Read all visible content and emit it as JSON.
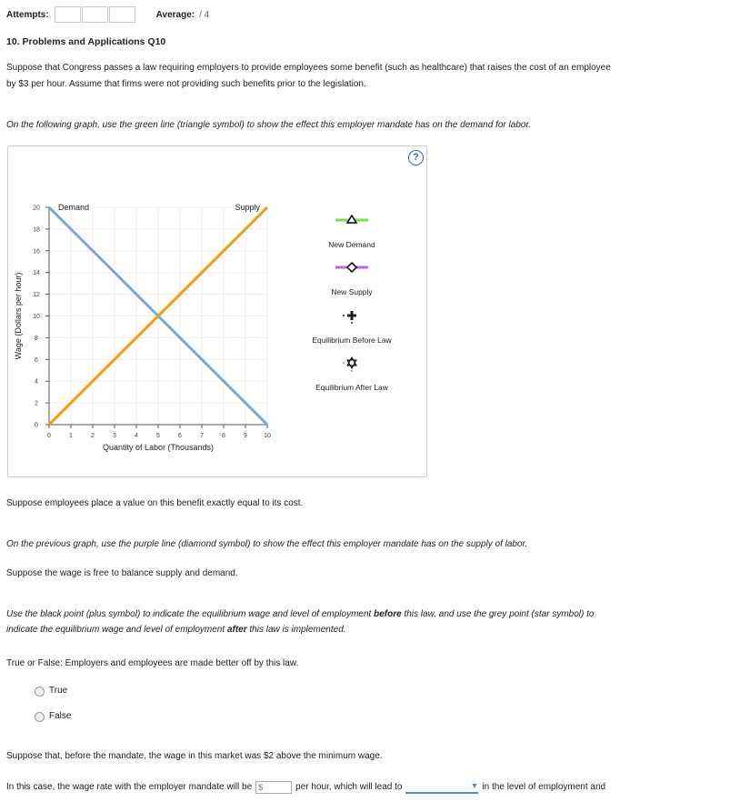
{
  "header": {
    "attempts_label": "Attempts:",
    "average_label": "Average:",
    "average_value": "/ 4"
  },
  "question": {
    "title": "10. Problems and Applications Q10",
    "intro_1": "Suppose that Congress passes a law requiring employers to provide employees some benefit (such as healthcare) that raises the cost of an employee",
    "intro_2": "by $3 per hour. Assume that firms were not providing such benefits prior to the legislation.",
    "instr_demand": "On the following graph, use the green line (triangle symbol) to show the effect this employer mandate has on the demand for labor.",
    "value_benefit": "Suppose employees place a value on this benefit exactly equal to its cost.",
    "instr_supply": "On the previous graph, use the purple line (diamond symbol) to show the effect this employer mandate has on the supply of labor.",
    "wage_free": "Suppose the wage is free to balance supply and demand.",
    "instr_points_1a": "Use the black point (plus symbol) to indicate the equilibrium wage and level of employment ",
    "instr_points_1b": "before",
    "instr_points_1c": " this law, and use the grey point (star symbol) to",
    "instr_points_2a": "indicate the equilibrium wage and level of employment ",
    "instr_points_2b": "after",
    "instr_points_2c": " this law is implemented.",
    "tf_question": "True or False: Employers and employees are made better off by this law.",
    "options": [
      "True",
      "False"
    ],
    "min_wage": "Suppose that, before the mandate, the wage in this market was $2 above the minimum wage.",
    "final_a": "In this case, the wage rate with the employer mandate will be",
    "final_placeholder": "$",
    "final_b": "per hour, which will lead to",
    "final_c": "in the level of employment and"
  },
  "graph": {
    "help": "?"
  },
  "chart_data": {
    "type": "line",
    "xlabel": "Quantity of Labor (Thousands)",
    "ylabel": "Wage (Dollars per hour)",
    "xlim": [
      0,
      10
    ],
    "ylim": [
      0,
      20
    ],
    "xticks": [
      0,
      1,
      2,
      3,
      4,
      5,
      6,
      7,
      8,
      9,
      10
    ],
    "yticks": [
      0,
      2,
      4,
      6,
      8,
      10,
      12,
      14,
      16,
      18,
      20
    ],
    "grid": true,
    "series": [
      {
        "name": "Demand",
        "x": [
          0,
          10
        ],
        "y": [
          20,
          0
        ],
        "color": "#7fa8d1"
      },
      {
        "name": "Supply",
        "x": [
          0,
          10
        ],
        "y": [
          0,
          20
        ],
        "color": "#f39a14"
      }
    ],
    "legend": [
      {
        "label": "New Demand",
        "symbol": "triangle",
        "color": "#7ed957"
      },
      {
        "label": "New Supply",
        "symbol": "diamond",
        "color": "#b36bd6"
      },
      {
        "label": "Equilibrium Before Law",
        "symbol": "plus",
        "color": "#222222"
      },
      {
        "label": "Equilibrium After Law",
        "symbol": "star",
        "color": "#777777"
      }
    ]
  }
}
